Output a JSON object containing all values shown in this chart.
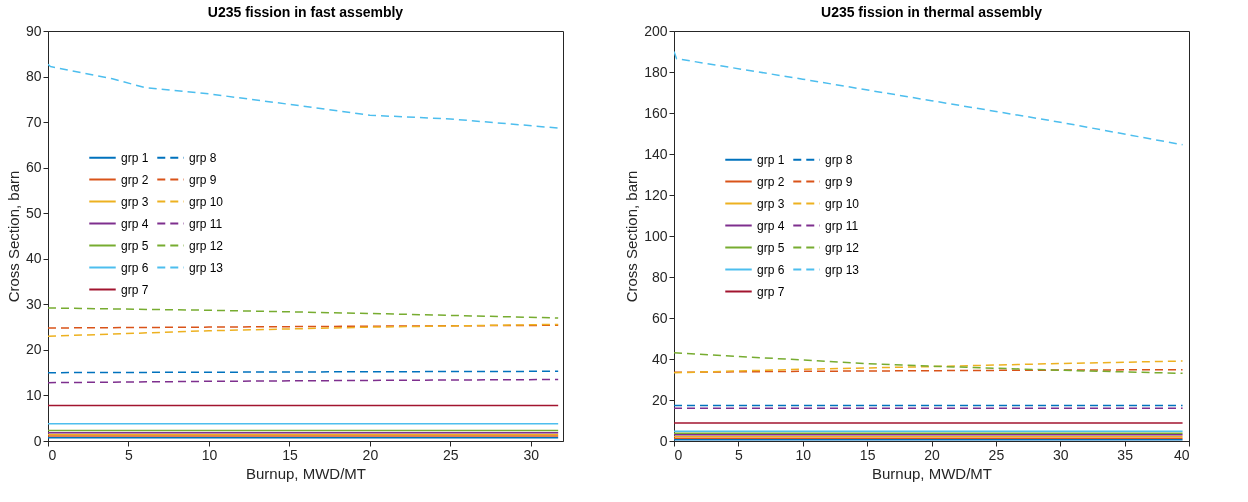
{
  "chart_data": [
    {
      "type": "line",
      "title": "U235 fission in fast assembly",
      "xlabel": "Burnup, MWD/MT",
      "ylabel": "Cross Section, barn",
      "xlim": [
        0,
        32
      ],
      "xticks": [
        0,
        5,
        10,
        15,
        20,
        25,
        30
      ],
      "ylim": [
        0,
        90
      ],
      "yticks": [
        0,
        10,
        20,
        30,
        40,
        50,
        60,
        70,
        80,
        90
      ],
      "grid": false,
      "legend": "top left",
      "marker": "none",
      "series": [
        {
          "name": "grp 1",
          "color": "#0072bd",
          "line_style": "solid",
          "x": [
            0,
            31.7
          ],
          "values": [
            0.7,
            0.7
          ]
        },
        {
          "name": "grp 2",
          "color": "#d95319",
          "line_style": "solid",
          "x": [
            0,
            31.7
          ],
          "values": [
            1.1,
            1.1
          ]
        },
        {
          "name": "grp 3",
          "color": "#edb120",
          "line_style": "solid",
          "x": [
            0,
            31.7
          ],
          "values": [
            1.4,
            1.4
          ]
        },
        {
          "name": "grp 4",
          "color": "#7e2f8e",
          "line_style": "solid",
          "x": [
            0,
            31.7
          ],
          "values": [
            1.8,
            1.8
          ]
        },
        {
          "name": "grp 5",
          "color": "#77ac30",
          "line_style": "solid",
          "x": [
            0,
            31.7
          ],
          "values": [
            2.3,
            2.3
          ]
        },
        {
          "name": "grp 6",
          "color": "#4dbeee",
          "line_style": "solid",
          "x": [
            0,
            31.7
          ],
          "values": [
            3.8,
            3.8
          ]
        },
        {
          "name": "grp 7",
          "color": "#a2142f",
          "line_style": "solid",
          "x": [
            0,
            31.7
          ],
          "values": [
            7.8,
            7.8
          ]
        },
        {
          "name": "grp 8",
          "color": "#0072bd",
          "line_style": "dashed",
          "x": [
            0,
            10,
            20,
            31.7
          ],
          "values": [
            15.0,
            15.1,
            15.2,
            15.3
          ]
        },
        {
          "name": "grp 9",
          "color": "#d95319",
          "line_style": "dashed",
          "x": [
            0,
            10,
            20,
            31.7
          ],
          "values": [
            24.8,
            25.0,
            25.2,
            25.4
          ]
        },
        {
          "name": "grp 10",
          "color": "#edb120",
          "line_style": "dashed",
          "x": [
            0,
            10,
            20,
            31.7
          ],
          "values": [
            23.0,
            24.2,
            25.0,
            25.6
          ]
        },
        {
          "name": "grp 11",
          "color": "#7e2f8e",
          "line_style": "dashed",
          "x": [
            0,
            10,
            20,
            31.7
          ],
          "values": [
            12.8,
            13.1,
            13.3,
            13.5
          ]
        },
        {
          "name": "grp 12",
          "color": "#77ac30",
          "line_style": "dashed",
          "x": [
            0,
            10,
            20,
            31.7
          ],
          "values": [
            29.2,
            28.7,
            28.0,
            27.0
          ]
        },
        {
          "name": "grp 13",
          "color": "#4dbeee",
          "line_style": "dashed",
          "x": [
            0,
            0.15,
            4,
            6,
            10,
            15,
            20,
            25,
            31.7
          ],
          "values": [
            82.7,
            82.2,
            79.5,
            77.6,
            76.2,
            73.9,
            71.5,
            70.7,
            68.7
          ]
        }
      ]
    },
    {
      "type": "line",
      "title": "U235 fission in thermal assembly",
      "xlabel": "Burnup, MWD/MT",
      "ylabel": "Cross Section, barn",
      "xlim": [
        0,
        40
      ],
      "xticks": [
        0,
        5,
        10,
        15,
        20,
        25,
        30,
        35,
        40
      ],
      "ylim": [
        0,
        200
      ],
      "yticks": [
        0,
        20,
        40,
        60,
        80,
        100,
        120,
        140,
        160,
        180,
        200
      ],
      "grid": false,
      "legend": "top left",
      "marker": "none",
      "series": [
        {
          "name": "grp 1",
          "color": "#0072bd",
          "line_style": "solid",
          "x": [
            0,
            39.5
          ],
          "values": [
            0.6,
            0.6
          ]
        },
        {
          "name": "grp 2",
          "color": "#d95319",
          "line_style": "solid",
          "x": [
            0,
            39.5
          ],
          "values": [
            1.4,
            1.4
          ]
        },
        {
          "name": "grp 3",
          "color": "#edb120",
          "line_style": "solid",
          "x": [
            0,
            39.5
          ],
          "values": [
            2.2,
            2.2
          ]
        },
        {
          "name": "grp 4",
          "color": "#7e2f8e",
          "line_style": "solid",
          "x": [
            0,
            39.5
          ],
          "values": [
            3.0,
            3.0
          ]
        },
        {
          "name": "grp 5",
          "color": "#77ac30",
          "line_style": "solid",
          "x": [
            0,
            39.5
          ],
          "values": [
            3.8,
            3.8
          ]
        },
        {
          "name": "grp 6",
          "color": "#4dbeee",
          "line_style": "solid",
          "x": [
            0,
            39.5
          ],
          "values": [
            4.8,
            4.8
          ]
        },
        {
          "name": "grp 7",
          "color": "#a2142f",
          "line_style": "solid",
          "x": [
            0,
            39.5
          ],
          "values": [
            8.8,
            8.8
          ]
        },
        {
          "name": "grp 8",
          "color": "#0072bd",
          "line_style": "dashed",
          "x": [
            0,
            39.5
          ],
          "values": [
            17.3,
            17.3
          ]
        },
        {
          "name": "grp 9",
          "color": "#d95319",
          "line_style": "dashed",
          "x": [
            0,
            10,
            20,
            30,
            39.5
          ],
          "values": [
            33.5,
            34.0,
            34.3,
            34.6,
            34.8
          ]
        },
        {
          "name": "grp 10",
          "color": "#edb120",
          "line_style": "dashed",
          "x": [
            0,
            10,
            20,
            30,
            39.5
          ],
          "values": [
            33.3,
            35.0,
            36.3,
            37.8,
            39.0
          ]
        },
        {
          "name": "grp 11",
          "color": "#7e2f8e",
          "line_style": "dashed",
          "x": [
            0,
            39.5
          ],
          "values": [
            16.0,
            16.0
          ]
        },
        {
          "name": "grp 12",
          "color": "#77ac30",
          "line_style": "dashed",
          "x": [
            0,
            10,
            15,
            20,
            25,
            30,
            39.5
          ],
          "values": [
            43.0,
            39.5,
            37.7,
            36.5,
            35.5,
            34.5,
            33.0
          ]
        },
        {
          "name": "grp 13",
          "color": "#4dbeee",
          "line_style": "dashed",
          "x": [
            0,
            0.2,
            10,
            20,
            30,
            39.5
          ],
          "values": [
            190,
            186.5,
            176.5,
            166,
            155.5,
            144.5
          ]
        }
      ]
    }
  ]
}
